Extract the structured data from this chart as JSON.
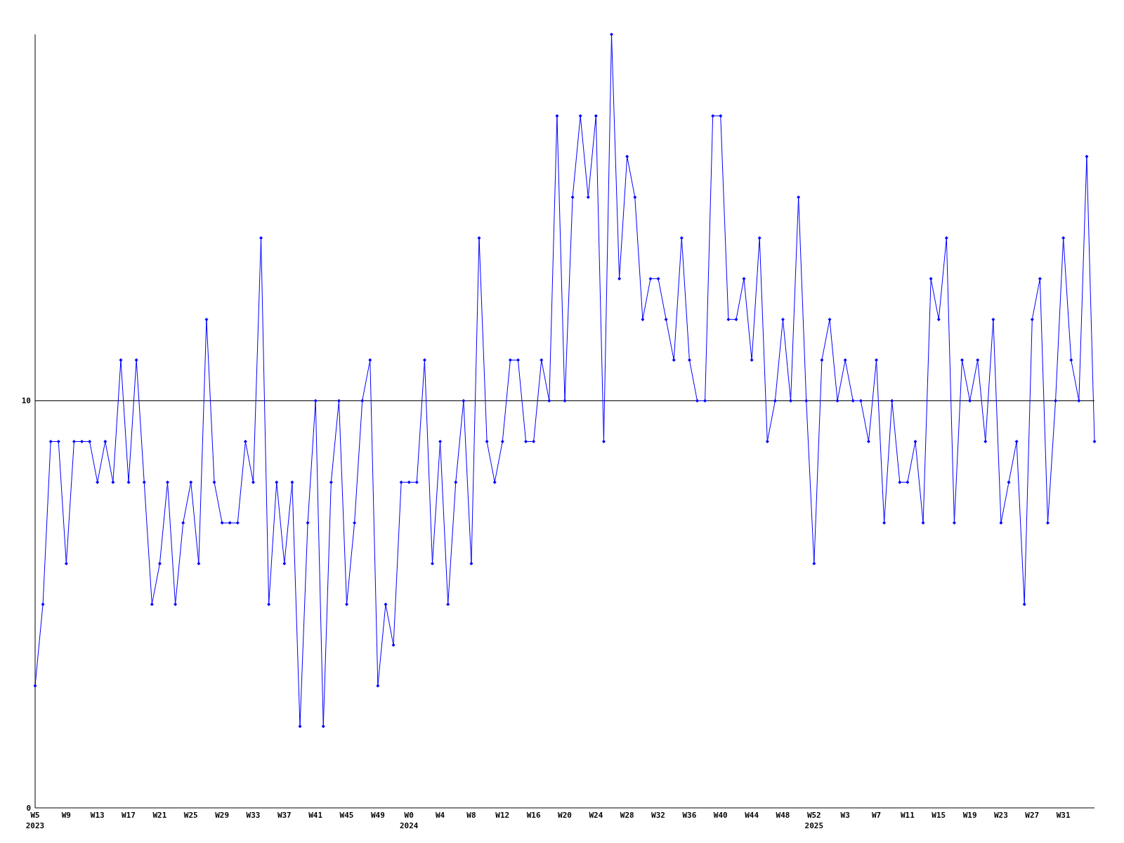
{
  "chart_data": {
    "type": "line",
    "categories": [
      "W5\n2023",
      null,
      null,
      null,
      "W9",
      null,
      null,
      null,
      "W13",
      null,
      null,
      null,
      "W17",
      null,
      null,
      null,
      "W21",
      null,
      null,
      null,
      "W25",
      null,
      null,
      null,
      "W29",
      null,
      null,
      null,
      "W33",
      null,
      null,
      null,
      "W37",
      null,
      null,
      null,
      "W41",
      null,
      null,
      null,
      "W45",
      null,
      null,
      null,
      "W49",
      null,
      null,
      null,
      "W0\n2024",
      null,
      null,
      null,
      "W4",
      null,
      null,
      null,
      "W8",
      null,
      null,
      null,
      "W12",
      null,
      null,
      null,
      "W16",
      null,
      null,
      null,
      "W20",
      null,
      null,
      null,
      "W24",
      null,
      null,
      null,
      "W28",
      null,
      null,
      null,
      "W32",
      null,
      null,
      null,
      "W36",
      null,
      null,
      null,
      "W40",
      null,
      null,
      null,
      "W44",
      null,
      null,
      null,
      "W48",
      null,
      null,
      null,
      "W52\n2025",
      null,
      null,
      null,
      "W3",
      null,
      null,
      null,
      "W7",
      null,
      null,
      null,
      "W11",
      null,
      null,
      null,
      "W15",
      null,
      null,
      null,
      "W19",
      null,
      null,
      null,
      "W23",
      null,
      null,
      null,
      "W27",
      null,
      null,
      null,
      "W31",
      null,
      null,
      null,
      null
    ],
    "series": [
      {
        "color": "#0000ff",
        "values": [
          3,
          5,
          9,
          9,
          6,
          9,
          9,
          9,
          8,
          9,
          8,
          11,
          8,
          11,
          8,
          5,
          6,
          8,
          5,
          7,
          8,
          6,
          12,
          8,
          7,
          7,
          7,
          9,
          8,
          14,
          5,
          8,
          6,
          8,
          2,
          7,
          10,
          2,
          8,
          10,
          5,
          7,
          10,
          11,
          3,
          5,
          4,
          8,
          8,
          8,
          11,
          6,
          9,
          5,
          8,
          10,
          6,
          14,
          9,
          8,
          9,
          11,
          11,
          9,
          9,
          11,
          10,
          17,
          10,
          15,
          17,
          15,
          17,
          9,
          19,
          13,
          16,
          15,
          12,
          13,
          13,
          12,
          11,
          14,
          11,
          10,
          10,
          17,
          17,
          12,
          12,
          13,
          11,
          14,
          9,
          10,
          12,
          10,
          15,
          10,
          6,
          11,
          12,
          10,
          11,
          10,
          10,
          9,
          11,
          7,
          10,
          8,
          8,
          9,
          7,
          13,
          12,
          14,
          7,
          11,
          10,
          11,
          9,
          12,
          7,
          8,
          9,
          5,
          12,
          13,
          7,
          10,
          14,
          11,
          10,
          16,
          9
        ]
      }
    ],
    "ylim": [
      0,
      19
    ],
    "yticks": [
      0,
      10
    ],
    "marker": "diamond",
    "grid": false,
    "ref_lines": [
      {
        "axis": "y",
        "value": 10,
        "color": "#000000"
      }
    ]
  }
}
